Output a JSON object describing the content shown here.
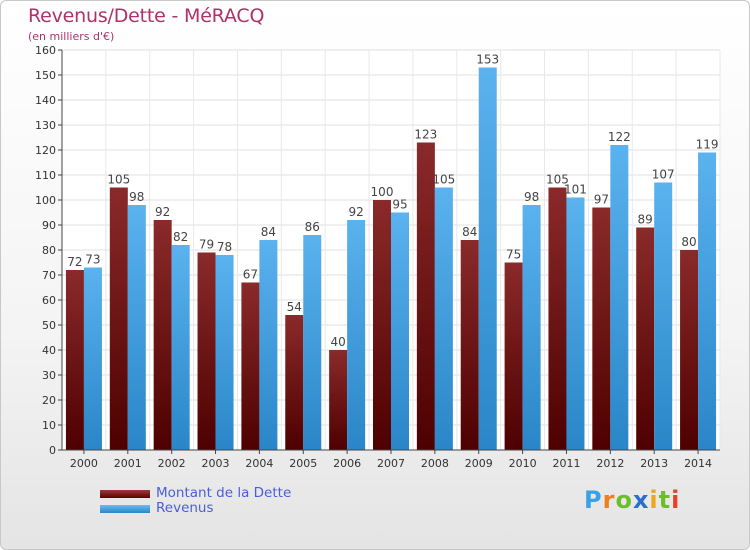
{
  "header": {
    "title": "Revenus/Dette - MéRACQ",
    "subtitle": "(en milliers d'€)"
  },
  "chart_data": {
    "type": "bar",
    "categories": [
      "2000",
      "2001",
      "2002",
      "2003",
      "2004",
      "2005",
      "2006",
      "2007",
      "2008",
      "2009",
      "2010",
      "2011",
      "2012",
      "2013",
      "2014"
    ],
    "series": [
      {
        "name": "Montant de la Dette",
        "values": [
          72,
          105,
          92,
          79,
          67,
          54,
          40,
          100,
          123,
          84,
          75,
          105,
          97,
          89,
          80
        ],
        "color": "#7a1a1a"
      },
      {
        "name": "Revenus",
        "values": [
          73,
          98,
          82,
          78,
          84,
          86,
          92,
          95,
          105,
          153,
          98,
          101,
          122,
          107,
          119
        ],
        "color": "#4aa3e6"
      }
    ],
    "yticks": [
      0,
      10,
      20,
      30,
      40,
      50,
      60,
      70,
      80,
      90,
      100,
      110,
      120,
      130,
      140,
      150,
      160
    ],
    "ylim": [
      0,
      160
    ],
    "grid": true,
    "legend_position": "bottom-left"
  },
  "legend": {
    "items": [
      {
        "label": "Montant de la Dette"
      },
      {
        "label": "Revenus"
      }
    ]
  },
  "logo": {
    "letters": [
      {
        "ch": "P",
        "color": "#3aa0e8"
      },
      {
        "ch": "r",
        "color": "#f07d1e"
      },
      {
        "ch": "o",
        "color": "#6cbf2a"
      },
      {
        "ch": "x",
        "color": "#2a6fd0"
      },
      {
        "ch": "i",
        "color": "#f0a51e"
      },
      {
        "ch": "t",
        "color": "#6cbf2a"
      },
      {
        "ch": "i",
        "color": "#e8402a"
      }
    ]
  }
}
